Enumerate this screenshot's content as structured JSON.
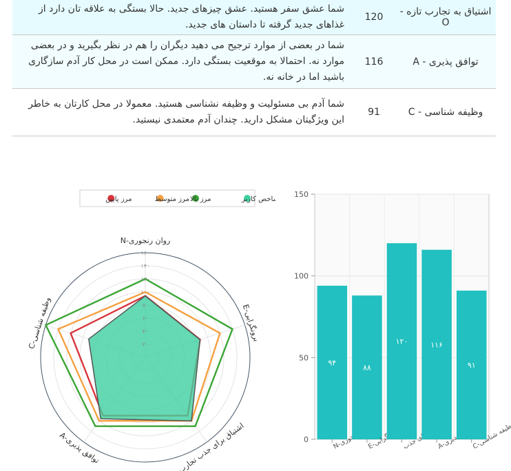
{
  "traits": [
    {
      "name": "اشتیاق به تجارب تازه - O",
      "score": "120",
      "description": "شما عشق سفر هستید. عشق چیزهای جدید. حالا بستگی به علاقه تان دارد از غذاهای جدید گرفته تا داستان های جدید."
    },
    {
      "name": "توافق پذیری - A",
      "score": "116",
      "description": "شما در بعضی از موارد ترجیح می دهید دیگران را هم در نظر بگیرید و در بعضی موارد نه. احتمالا به موقعیت بستگی دارد. ممکن است در محل کار آدم سازگاری باشید اما در خانه نه."
    },
    {
      "name": "وظیفه شناسی - C",
      "score": "91",
      "description": "شما آدم بی مسئولیت و وظیفه نشناسی هستید. معمولا در محل کارتان به خاطر این ویژگیتان مشکل دارید. چندان آدم معتمدی نیستید."
    }
  ],
  "chart_data": [
    {
      "type": "radar",
      "legend": [
        "شاخص کاربر",
        "مرز بالا",
        "مرز متوسط",
        "مرز پایین"
      ],
      "legend_position": "top",
      "axes": [
        "روان رنجوری-N",
        "برونگرایی-E",
        "اشتیاق برای جذب تجارب",
        "توافق پذیری-A",
        "وظیفه شناسی-C"
      ],
      "rlim": [
        0,
        160
      ],
      "tick_labels": [
        "۲۰",
        "۴۰",
        "۶۰",
        "۸۰",
        "۱۰۰",
        "۱۲۰",
        "۱۴۰",
        "۱۶۰"
      ],
      "series": [
        {
          "name": "شاخص کاربر",
          "values": [
            94,
            88,
            120,
            116,
            91
          ],
          "color": "#3ecfa0"
        },
        {
          "name": "مرز بالا",
          "values": [
            120,
            140,
            130,
            130,
            160
          ],
          "color": "#3aa535"
        },
        {
          "name": "مرز متوسط",
          "values": [
            100,
            120,
            120,
            120,
            140
          ],
          "color": "#f5a040"
        },
        {
          "name": "مرز پایین",
          "values": [
            94,
            88,
            110,
            110,
            120
          ],
          "color": "#d9353c"
        }
      ]
    },
    {
      "type": "bar",
      "categories": [
        "روان رنجوری-N",
        "برونگرایی-E",
        "اشتیاق برای جذب",
        "توافق پذیری-A",
        "وظیفه شناسی-C"
      ],
      "values": [
        94,
        88,
        120,
        116,
        91
      ],
      "data_labels": [
        "۹۴",
        "۸۸",
        "۱۲۰",
        "۱۱۶",
        "۹۱"
      ],
      "ylim": [
        0,
        150
      ],
      "yticks": [
        0,
        50,
        100,
        150
      ],
      "color": "#22c0c0",
      "grid": true
    }
  ]
}
